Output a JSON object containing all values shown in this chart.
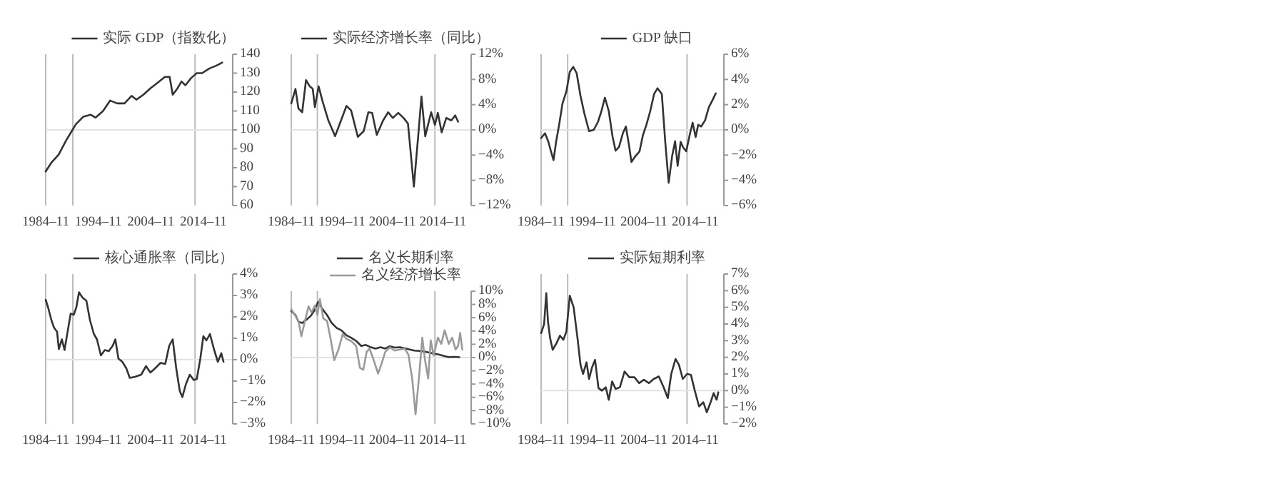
{
  "chart_data": [
    {
      "type": "line",
      "legend": "top",
      "xlim": [
        "1984-11",
        "2020-06"
      ],
      "xticks": [
        {
          "value": "1984-11",
          "label": "1984–11"
        },
        {
          "value": "1994-11",
          "label": "1994–11"
        },
        {
          "value": "2004-11",
          "label": "2004–11"
        },
        {
          "value": "2014-11",
          "label": "2014–11"
        }
      ],
      "ylim": [
        60,
        140
      ],
      "yticks": [
        60,
        70,
        80,
        90,
        100,
        110,
        120,
        130,
        140
      ],
      "ref_lines": [
        {
          "axis": "x",
          "value": "1984-11",
          "color": "#bbbbbb"
        },
        {
          "axis": "x",
          "value": "1990-01",
          "color": "#bbbbbb"
        },
        {
          "axis": "x",
          "value": "2013-04",
          "color": "#bbbbbb"
        },
        {
          "axis": "y",
          "value": 100,
          "color": "#e2e2e2"
        }
      ],
      "series": [
        {
          "name": "实际 GDP（指数化）",
          "color": "#333333",
          "x": [
            "1984-11",
            "1986-01",
            "1987-05",
            "1988-10",
            "1989-08",
            "1990-08",
            "1992-01",
            "1993-06",
            "1994-05",
            "1995-10",
            "1997-02",
            "1998-06",
            "1999-11",
            "2001-03",
            "2002-02",
            "2003-06",
            "2004-10",
            "2006-03",
            "2007-07",
            "2008-06",
            "2009-01",
            "2009-12",
            "2010-09",
            "2011-06",
            "2012-07",
            "2013-08",
            "2014-08",
            "2016-01",
            "2017-05",
            "2018-06"
          ],
          "values": [
            78,
            83,
            87,
            94.6,
            98.4,
            103,
            107,
            108,
            106.5,
            110,
            115.5,
            114,
            114,
            118,
            116,
            118.6,
            122,
            125,
            128,
            128,
            118.6,
            122,
            125.6,
            123.6,
            127.4,
            130,
            130,
            132.5,
            134,
            135.6
          ]
        }
      ]
    },
    {
      "type": "line",
      "legend": "top",
      "xlim": [
        "1984-11",
        "2020-06"
      ],
      "xticks": [
        {
          "value": "1984-11",
          "label": "1984–11"
        },
        {
          "value": "1994-11",
          "label": "1994–11"
        },
        {
          "value": "2004-11",
          "label": "2004–11"
        },
        {
          "value": "2014-11",
          "label": "2014–11"
        }
      ],
      "ylim": [
        -12,
        12
      ],
      "yticks": [
        {
          "value": -12,
          "label": "−12%"
        },
        {
          "value": -8,
          "label": "−8%"
        },
        {
          "value": -4,
          "label": "−4%"
        },
        {
          "value": 0,
          "label": "0%"
        },
        {
          "value": 4,
          "label": "4%"
        },
        {
          "value": 8,
          "label": "8%"
        },
        {
          "value": 12,
          "label": "12%"
        }
      ],
      "ref_lines": [
        {
          "axis": "x",
          "value": "1984-11",
          "color": "#bbbbbb"
        },
        {
          "axis": "x",
          "value": "1990-01",
          "color": "#bbbbbb"
        },
        {
          "axis": "x",
          "value": "2013-04",
          "color": "#bbbbbb"
        },
        {
          "axis": "y",
          "value": 0,
          "color": "#e2e2e2"
        }
      ],
      "series": [
        {
          "name": "实际经济增长率（同比）",
          "color": "#333333",
          "x": [
            "1984-11",
            "1985-09",
            "1986-04",
            "1987-01",
            "1987-10",
            "1988-07",
            "1989-02",
            "1989-07",
            "1990-04",
            "1991-01",
            "1992-03",
            "1993-07",
            "1994-08",
            "1995-10",
            "1996-09",
            "1998-01",
            "1999-03",
            "2000-02",
            "2000-11",
            "2001-10",
            "2003-01",
            "2004-01",
            "2004-12",
            "2006-01",
            "2007-03",
            "2007-12",
            "2009-02",
            "2010-01",
            "2010-08",
            "2011-05",
            "2012-07",
            "2013-04",
            "2013-11",
            "2014-08",
            "2015-07",
            "2016-07",
            "2017-04",
            "2017-11"
          ],
          "values": [
            4.2,
            6.5,
            3.4,
            2.8,
            7.9,
            6.9,
            6.5,
            3.6,
            6.9,
            4.6,
            1.5,
            -1.0,
            1.3,
            3.8,
            3.1,
            -1.1,
            -0.2,
            2.8,
            2.7,
            -0.8,
            1.5,
            2.8,
            1.9,
            2.7,
            1.8,
            1.0,
            -9.0,
            -0.4,
            5.3,
            -1.0,
            2.8,
            0.8,
            2.7,
            -0.4,
            1.9,
            1.5,
            2.3,
            1.3
          ]
        }
      ]
    },
    {
      "type": "line",
      "legend": "top",
      "xlim": [
        "1984-11",
        "2020-06"
      ],
      "xticks": [
        {
          "value": "1984-11",
          "label": "1984–11"
        },
        {
          "value": "1994-11",
          "label": "1994–11"
        },
        {
          "value": "2004-11",
          "label": "2004–11"
        },
        {
          "value": "2014-11",
          "label": "2014–11"
        }
      ],
      "ylim": [
        -6,
        6
      ],
      "yticks": [
        {
          "value": -6,
          "label": "−6%"
        },
        {
          "value": -4,
          "label": "−4%"
        },
        {
          "value": -2,
          "label": "−2%"
        },
        {
          "value": 0,
          "label": "0%"
        },
        {
          "value": 2,
          "label": "2%"
        },
        {
          "value": 4,
          "label": "4%"
        },
        {
          "value": 6,
          "label": "6%"
        }
      ],
      "ref_lines": [
        {
          "axis": "x",
          "value": "1984-11",
          "color": "#bbbbbb"
        },
        {
          "axis": "x",
          "value": "1990-01",
          "color": "#bbbbbb"
        },
        {
          "axis": "x",
          "value": "2013-04",
          "color": "#bbbbbb"
        },
        {
          "axis": "y",
          "value": 0,
          "color": "#e2e2e2"
        }
      ],
      "series": [
        {
          "name": "GDP 缺口",
          "color": "#333333",
          "x": [
            "1984-11",
            "1985-08",
            "1986-04",
            "1986-10",
            "1987-04",
            "1987-10",
            "1988-05",
            "1989-01",
            "1989-10",
            "1990-06",
            "1991-02",
            "1991-10",
            "1992-07",
            "1993-04",
            "1994-03",
            "1995-02",
            "1995-12",
            "1996-08",
            "1997-04",
            "1998-01",
            "1998-10",
            "1999-05",
            "2000-01",
            "2000-10",
            "2001-05",
            "2001-12",
            "2002-06",
            "2003-03",
            "2004-01",
            "2004-09",
            "2005-05",
            "2006-02",
            "2006-11",
            "2007-07",
            "2008-05",
            "2009-01",
            "2009-09",
            "2010-05",
            "2010-12",
            "2011-06",
            "2012-01",
            "2012-07",
            "2013-02",
            "2013-11",
            "2014-05",
            "2014-12",
            "2015-06",
            "2016-01",
            "2016-10",
            "2017-07",
            "2018-04",
            "2018-11"
          ],
          "values": [
            -0.65,
            -0.27,
            -0.95,
            -1.7,
            -2.4,
            -0.95,
            0.4,
            2.1,
            3.05,
            4.6,
            5.0,
            4.5,
            2.7,
            1.3,
            -0.1,
            0,
            0.65,
            1.5,
            2.55,
            1.5,
            -0.55,
            -1.65,
            -1.35,
            -0.27,
            0.27,
            -1.15,
            -2.55,
            -2.1,
            -1.7,
            -0.4,
            0.4,
            1.5,
            2.85,
            3.3,
            2.85,
            -0.95,
            -4.2,
            -2.1,
            -0.9,
            -2.85,
            -0.95,
            -1.4,
            -1.7,
            -0.27,
            0.57,
            -0.57,
            0.4,
            0.27,
            0.76,
            1.8,
            2.4,
            2.9
          ]
        }
      ]
    },
    {
      "type": "line",
      "legend": "top",
      "xlim": [
        "1984-11",
        "2020-06"
      ],
      "xticks": [
        {
          "value": "1984-11",
          "label": "1984–11"
        },
        {
          "value": "1994-11",
          "label": "1994–11"
        },
        {
          "value": "2004-11",
          "label": "2004–11"
        },
        {
          "value": "2014-11",
          "label": "2014–11"
        }
      ],
      "ylim": [
        -3,
        4
      ],
      "yticks": [
        {
          "value": -3,
          "label": "−3%"
        },
        {
          "value": -2,
          "label": "−2%"
        },
        {
          "value": -1,
          "label": "−1%"
        },
        {
          "value": 0,
          "label": "0%"
        },
        {
          "value": 1,
          "label": "1%"
        },
        {
          "value": 2,
          "label": "2%"
        },
        {
          "value": 3,
          "label": "3%"
        },
        {
          "value": 4,
          "label": "4%"
        }
      ],
      "ref_lines": [
        {
          "axis": "x",
          "value": "1984-11",
          "color": "#bbbbbb"
        },
        {
          "axis": "x",
          "value": "1990-01",
          "color": "#bbbbbb"
        },
        {
          "axis": "x",
          "value": "2013-04",
          "color": "#bbbbbb"
        },
        {
          "axis": "y",
          "value": 0,
          "color": "#e2e2e2"
        }
      ],
      "series": [
        {
          "name": "核心通胀率（同比）",
          "color": "#333333",
          "x": [
            "1984-11",
            "1985-05",
            "1985-12",
            "1986-06",
            "1987-01",
            "1987-05",
            "1987-12",
            "1988-06",
            "1989-01",
            "1989-08",
            "1990-03",
            "1990-09",
            "1991-03",
            "1991-11",
            "1992-08",
            "1993-04",
            "1994-01",
            "1994-08",
            "1995-05",
            "1996-02",
            "1996-11",
            "1997-08",
            "1998-02",
            "1998-09",
            "1999-06",
            "2000-03",
            "2000-11",
            "2001-11",
            "2003-01",
            "2003-12",
            "2004-10",
            "2005-09",
            "2006-09",
            "2007-08",
            "2008-05",
            "2009-01",
            "2009-09",
            "2010-05",
            "2010-11",
            "2011-07",
            "2012-04",
            "2013-01",
            "2013-08",
            "2014-04",
            "2014-11",
            "2015-06",
            "2016-02",
            "2016-11",
            "2017-08",
            "2018-04",
            "2018-09"
          ],
          "values": [
            2.8,
            2.4,
            1.85,
            1.5,
            1.3,
            0.5,
            0.95,
            0.45,
            1.3,
            2.15,
            2.1,
            2.45,
            3.15,
            2.9,
            2.75,
            1.85,
            1.2,
            0.95,
            0.2,
            0.45,
            0.4,
            0.65,
            0.95,
            0.05,
            -0.1,
            -0.4,
            -0.85,
            -0.8,
            -0.7,
            -0.3,
            -0.6,
            -0.4,
            -0.15,
            -0.2,
            0.65,
            0.95,
            -0.4,
            -1.45,
            -1.75,
            -1.15,
            -0.7,
            -0.95,
            -0.9,
            0.05,
            1.1,
            0.9,
            1.2,
            0.5,
            -0.1,
            0.3,
            -0.1
          ]
        }
      ]
    },
    {
      "type": "line",
      "legend": "top",
      "xlim": [
        "1984-11",
        "2020-06"
      ],
      "xticks": [
        {
          "value": "1984-11",
          "label": "1984–11"
        },
        {
          "value": "1994-11",
          "label": "1994–11"
        },
        {
          "value": "2004-11",
          "label": "2004–11"
        },
        {
          "value": "2014-11",
          "label": "2014–11"
        }
      ],
      "ylim": [
        -10,
        10
      ],
      "yticks": [
        {
          "value": -10,
          "label": "−10%"
        },
        {
          "value": -8,
          "label": "−8%"
        },
        {
          "value": -6,
          "label": "−6%"
        },
        {
          "value": -4,
          "label": "−4%"
        },
        {
          "value": -2,
          "label": "−2%"
        },
        {
          "value": 0,
          "label": "0%"
        },
        {
          "value": 2,
          "label": "2%"
        },
        {
          "value": 4,
          "label": "4%"
        },
        {
          "value": 6,
          "label": "6%"
        },
        {
          "value": 8,
          "label": "8%"
        },
        {
          "value": 10,
          "label": "10%"
        }
      ],
      "ref_lines": [
        {
          "axis": "x",
          "value": "1984-11",
          "color": "#bbbbbb"
        },
        {
          "axis": "x",
          "value": "1990-01",
          "color": "#bbbbbb"
        },
        {
          "axis": "x",
          "value": "2013-04",
          "color": "#bbbbbb"
        },
        {
          "axis": "y",
          "value": 0,
          "color": "#e2e2e2"
        }
      ],
      "series": [
        {
          "name": "名义长期利率",
          "color": "#333333",
          "x": [
            "1984-11",
            "1985-09",
            "1986-04",
            "1987-01",
            "1987-11",
            "1988-09",
            "1989-05",
            "1990-03",
            "1991-01",
            "1991-12",
            "1992-11",
            "1993-11",
            "1994-10",
            "1995-10",
            "1996-09",
            "1997-09",
            "1998-09",
            "1999-08",
            "2000-08",
            "2001-07",
            "2002-07",
            "2003-06",
            "2004-05",
            "2005-05",
            "2006-05",
            "2007-04",
            "2008-04",
            "2009-03",
            "2010-03",
            "2011-03",
            "2012-02",
            "2013-01",
            "2014-01",
            "2015-01",
            "2016-01",
            "2016-12",
            "2018-02"
          ],
          "values": [
            7.0,
            6.4,
            5.4,
            5.2,
            5.7,
            6.25,
            7.0,
            8.4,
            7.3,
            6.4,
            5.2,
            4.45,
            4.1,
            3.35,
            3.0,
            2.5,
            1.75,
            1.9,
            1.55,
            1.35,
            1.55,
            1.35,
            1.7,
            1.5,
            1.55,
            1.4,
            1.2,
            1.05,
            1.0,
            0.9,
            0.75,
            0.6,
            0.45,
            0.25,
            0.05,
            0.1,
            0.05
          ]
        },
        {
          "name": "名义经济增长率",
          "color": "#9a9a9a",
          "x": [
            "1984-11",
            "1985-09",
            "1986-04",
            "1986-11",
            "1987-08",
            "1988-04",
            "1988-11",
            "1989-07",
            "1990-01",
            "1990-07",
            "1991-03",
            "1991-12",
            "1992-09",
            "1993-05",
            "1994-03",
            "1995-01",
            "1995-10",
            "1996-09",
            "1997-09",
            "1998-06",
            "1999-02",
            "1999-10",
            "2000-05",
            "2001-02",
            "2002-01",
            "2002-09",
            "2003-06",
            "2004-05",
            "2005-05",
            "2006-05",
            "2007-04",
            "2008-01",
            "2008-10",
            "2009-06",
            "2010-03",
            "2010-10",
            "2011-05",
            "2011-12",
            "2012-06",
            "2013-01",
            "2013-11",
            "2014-07",
            "2015-03",
            "2016-01",
            "2016-09",
            "2017-05",
            "2017-11",
            "2018-04",
            "2018-09"
          ],
          "values": [
            7.3,
            6.25,
            5.5,
            3.2,
            5.65,
            7.7,
            6.8,
            7.8,
            6.4,
            8.8,
            5.9,
            5.5,
            2.6,
            -0.4,
            1.2,
            3.5,
            2.8,
            2.5,
            1.75,
            -1.55,
            -1.85,
            0.85,
            1.35,
            -0.25,
            -2.4,
            -1.0,
            0.85,
            1.55,
            1.05,
            1.2,
            1.35,
            0.45,
            -3.15,
            -8.55,
            -2.4,
            3.0,
            -0.6,
            -3.15,
            2.6,
            0.3,
            3.0,
            2.05,
            4.1,
            2.05,
            3.0,
            1.2,
            1.75,
            3.7,
            1.2
          ]
        }
      ]
    },
    {
      "type": "line",
      "legend": "top",
      "xlim": [
        "1984-11",
        "2020-06"
      ],
      "xticks": [
        {
          "value": "1984-11",
          "label": "1984–11"
        },
        {
          "value": "1994-11",
          "label": "1994–11"
        },
        {
          "value": "2004-11",
          "label": "2004–11"
        },
        {
          "value": "2014-11",
          "label": "2014–11"
        }
      ],
      "ylim": [
        -2,
        7
      ],
      "yticks": [
        {
          "value": -2,
          "label": "−2%"
        },
        {
          "value": -1,
          "label": "−1%"
        },
        {
          "value": 0,
          "label": "0%"
        },
        {
          "value": 1,
          "label": "1%"
        },
        {
          "value": 2,
          "label": "2%"
        },
        {
          "value": 3,
          "label": "3%"
        },
        {
          "value": 4,
          "label": "4%"
        },
        {
          "value": 5,
          "label": "5%"
        },
        {
          "value": 6,
          "label": "6%"
        },
        {
          "value": 7,
          "label": "7%"
        }
      ],
      "ref_lines": [
        {
          "axis": "x",
          "value": "1984-11",
          "color": "#bbbbbb"
        },
        {
          "axis": "x",
          "value": "1990-01",
          "color": "#bbbbbb"
        },
        {
          "axis": "x",
          "value": "2013-04",
          "color": "#bbbbbb"
        },
        {
          "axis": "y",
          "value": 0,
          "color": "#e2e2e2"
        }
      ],
      "series": [
        {
          "name": "实际短期利率",
          "color": "#333333",
          "x": [
            "1984-11",
            "1985-06",
            "1985-11",
            "1986-03",
            "1986-08",
            "1987-02",
            "1987-11",
            "1988-07",
            "1989-03",
            "1989-10",
            "1990-06",
            "1991-03",
            "1991-12",
            "1992-07",
            "1993-01",
            "1993-09",
            "1994-03",
            "1994-10",
            "1995-05",
            "1996-01",
            "1996-09",
            "1997-06",
            "1998-01",
            "1998-09",
            "1999-05",
            "2000-03",
            "2001-02",
            "2002-01",
            "2003-01",
            "2003-12",
            "2004-11",
            "2005-11",
            "2006-10",
            "2007-10",
            "2008-10",
            "2009-07",
            "2010-03",
            "2011-01",
            "2011-09",
            "2012-06",
            "2013-04",
            "2014-01",
            "2014-10",
            "2015-08",
            "2016-06",
            "2017-02",
            "2017-11",
            "2018-06",
            "2019-01",
            "2019-05"
          ],
          "values": [
            3.45,
            4.0,
            5.85,
            4.15,
            3.15,
            2.45,
            2.85,
            3.3,
            3.05,
            3.55,
            5.7,
            5.0,
            3.15,
            1.55,
            1.0,
            1.7,
            0.7,
            1.4,
            1.85,
            0.15,
            0.0,
            0.2,
            -0.55,
            0.55,
            0.1,
            0.2,
            1.15,
            0.8,
            0.8,
            0.45,
            0.65,
            0.45,
            0.7,
            0.85,
            0.15,
            -0.45,
            1.0,
            1.9,
            1.55,
            0.7,
            1.0,
            0.95,
            0.0,
            -0.95,
            -0.7,
            -1.3,
            -0.7,
            -0.15,
            -0.55,
            -0.1
          ]
        }
      ]
    }
  ]
}
